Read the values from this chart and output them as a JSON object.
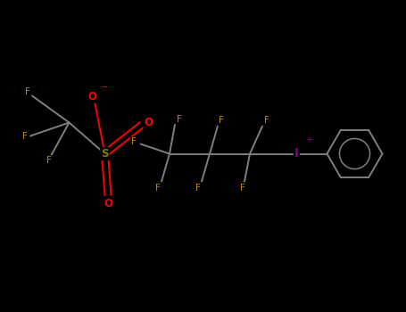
{
  "background_color": "#000000",
  "bond_color": "#7f7f7f",
  "F_color": "#B8860B",
  "O_color": "#FF0000",
  "S_color": "#808000",
  "I_color": "#800080",
  "C_color": "#7f7f7f",
  "figsize": [
    4.55,
    3.5
  ],
  "dpi": 100,
  "xlim": [
    0,
    9.1
  ],
  "ylim": [
    0,
    7.0
  ]
}
